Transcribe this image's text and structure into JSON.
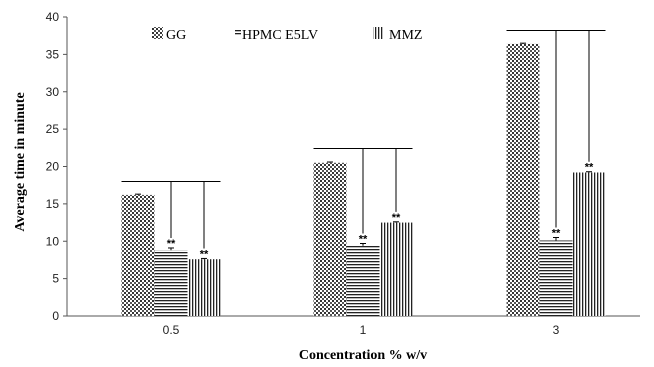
{
  "chart_data": {
    "type": "bar",
    "title": "",
    "xlabel": "Concentration % w/v",
    "ylabel": "Average time in minute",
    "categories": [
      "0.5",
      "1",
      "3"
    ],
    "ylim": [
      0,
      40
    ],
    "yticks": [
      0,
      5,
      10,
      15,
      20,
      25,
      30,
      35,
      40
    ],
    "grid": false,
    "legend_position": "top",
    "series": [
      {
        "name": "GG",
        "pattern": "dots",
        "values": [
          16.2,
          20.5,
          36.4
        ],
        "errors": [
          0.1,
          0.1,
          0.1
        ]
      },
      {
        "name": "HPMC E5LV",
        "pattern": "horizontal-lines",
        "values": [
          8.8,
          9.4,
          10.1
        ],
        "errors": [
          0.3,
          0.3,
          0.4
        ]
      },
      {
        "name": "MMZ",
        "pattern": "vertical-lines",
        "values": [
          7.6,
          12.5,
          19.2
        ],
        "errors": [
          0.1,
          0.1,
          0.1
        ]
      }
    ],
    "annotations": [
      {
        "category": "0.5",
        "series": "HPMC E5LV",
        "text": "**"
      },
      {
        "category": "0.5",
        "series": "MMZ",
        "text": "**"
      },
      {
        "category": "1",
        "series": "HPMC E5LV",
        "text": "**"
      },
      {
        "category": "1",
        "series": "MMZ",
        "text": "**"
      },
      {
        "category": "3",
        "series": "HPMC E5LV",
        "text": "**"
      },
      {
        "category": "3",
        "series": "MMZ",
        "text": "**"
      }
    ],
    "brackets": [
      {
        "category": "0.5",
        "top": 18
      },
      {
        "category": "1",
        "top": 22.4
      },
      {
        "category": "3",
        "top": 38.2
      }
    ]
  }
}
